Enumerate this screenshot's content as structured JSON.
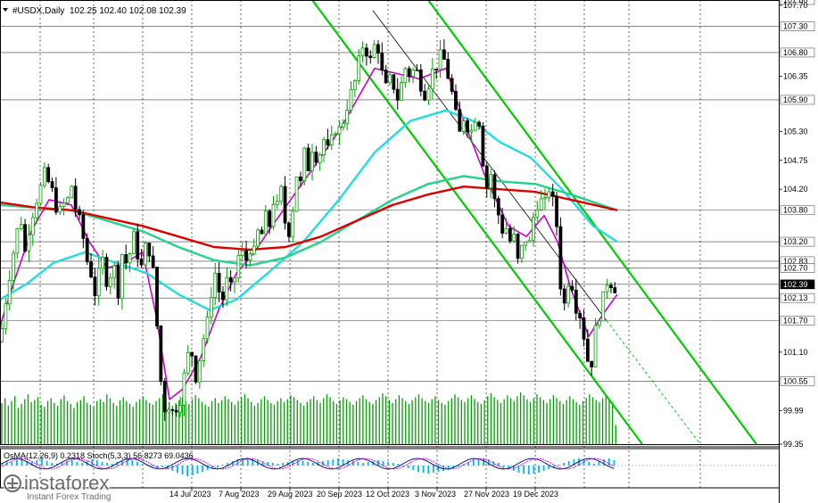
{
  "header": {
    "symbol": "#USDX,Daily",
    "ohlc": "102.25 102.40 102.08 102.39"
  },
  "osc_label": "OsMA(12,26,9) 0.2318  Stoch(5,3,3) 56.8273 69.0436",
  "watermark": {
    "brand": "instaforex",
    "tagline": "Instant Forex Trading"
  },
  "colors": {
    "bull": "#00a000",
    "bear": "#000000",
    "magenta": "#cc00cc",
    "cyan": "#22dddd",
    "green_ma": "#22d48a",
    "red_ma": "#dd0000",
    "channel": "#00cc00",
    "volume": "#00a000",
    "osma": "#00b7ee",
    "stoch_main": "#000080",
    "stoch_signal": "#cc00cc",
    "grid": "#000000",
    "level": "#000000"
  },
  "chart_data": {
    "type": "candlestick",
    "instrument": "#USDX",
    "timeframe": "Daily",
    "ylim": [
      99.35,
      107.8
    ],
    "price_ticks": [
      "107.80",
      "107.70",
      "107.30",
      "106.80",
      "106.35",
      "105.90",
      "105.30",
      "104.75",
      "104.20",
      "103.80",
      "103.20",
      "102.83",
      "102.70",
      "102.39",
      "102.13",
      "101.70",
      "101.10",
      "100.55",
      "99.99",
      "99.35"
    ],
    "horizontal_levels": [
      107.3,
      106.8,
      105.9,
      103.8,
      103.2,
      102.83,
      102.7,
      102.39,
      102.13,
      101.7,
      100.55
    ],
    "date_ticks": [
      "14 Jul 2023",
      "7 Aug 2023",
      "29 Aug 2023",
      "20 Sep 2023",
      "12 Oct 2023",
      "3 Nov 2023",
      "27 Nov 2023",
      "19 Dec 2023"
    ],
    "close_path": [
      [
        0,
        101.3
      ],
      [
        4,
        101.8
      ],
      [
        9,
        102.4
      ],
      [
        14,
        102.9
      ],
      [
        18,
        103.3
      ],
      [
        23,
        103.7
      ],
      [
        28,
        103.0
      ],
      [
        33,
        103.5
      ],
      [
        39,
        103.9
      ],
      [
        45,
        104.2
      ],
      [
        50,
        104.5
      ],
      [
        55,
        104.3
      ],
      [
        60,
        104.1
      ],
      [
        65,
        103.7
      ],
      [
        71,
        103.9
      ],
      [
        76,
        104.0
      ],
      [
        80,
        104.3
      ],
      [
        85,
        103.8
      ],
      [
        89,
        103.6
      ],
      [
        93,
        103.3
      ],
      [
        98,
        102.8
      ],
      [
        102,
        102.6
      ],
      [
        106,
        102.2
      ],
      [
        111,
        102.6
      ],
      [
        116,
        102.9
      ],
      [
        120,
        102.4
      ],
      [
        124,
        102.6
      ],
      [
        128,
        102.7
      ],
      [
        133,
        102.2
      ],
      [
        137,
        103.0
      ],
      [
        141,
        102.8
      ],
      [
        146,
        103.0
      ],
      [
        150,
        103.3
      ],
      [
        155,
        102.9
      ],
      [
        159,
        102.7
      ],
      [
        164,
        103.2
      ],
      [
        168,
        103.0
      ],
      [
        173,
        102.5
      ],
      [
        177,
        101.3
      ],
      [
        181,
        100.4
      ],
      [
        185,
        100.0
      ],
      [
        189,
        100.1
      ],
      [
        193,
        99.95
      ],
      [
        197,
        100.05
      ],
      [
        201,
        100.1
      ],
      [
        205,
        100.5
      ],
      [
        210,
        101.0
      ],
      [
        214,
        101.2
      ],
      [
        219,
        100.6
      ],
      [
        223,
        100.9
      ],
      [
        227,
        101.3
      ],
      [
        232,
        101.6
      ],
      [
        236,
        102.1
      ],
      [
        240,
        102.7
      ],
      [
        245,
        102.3
      ],
      [
        249,
        102.0
      ],
      [
        253,
        102.5
      ],
      [
        258,
        102.3
      ],
      [
        262,
        102.4
      ],
      [
        266,
        102.9
      ],
      [
        271,
        103.0
      ],
      [
        275,
        102.8
      ],
      [
        280,
        103.1
      ],
      [
        284,
        102.9
      ],
      [
        288,
        103.4
      ],
      [
        293,
        103.3
      ],
      [
        297,
        103.7
      ],
      [
        302,
        103.5
      ],
      [
        306,
        104.0
      ],
      [
        310,
        103.8
      ],
      [
        315,
        104.2
      ],
      [
        319,
        103.6
      ],
      [
        324,
        103.4
      ],
      [
        328,
        103.8
      ],
      [
        332,
        104.5
      ],
      [
        337,
        104.3
      ],
      [
        341,
        104.9
      ],
      [
        346,
        104.6
      ],
      [
        350,
        105.0
      ],
      [
        355,
        104.8
      ],
      [
        359,
        104.9
      ],
      [
        364,
        105.2
      ],
      [
        368,
        104.9
      ],
      [
        373,
        105.2
      ],
      [
        377,
        105.4
      ],
      [
        382,
        105.3
      ],
      [
        386,
        105.6
      ],
      [
        391,
        105.9
      ],
      [
        395,
        106.1
      ],
      [
        399,
        106.3
      ],
      [
        404,
        106.8
      ],
      [
        408,
        107.0
      ],
      [
        413,
        106.7
      ],
      [
        417,
        106.6
      ],
      [
        421,
        107.1
      ],
      [
        425,
        106.8
      ],
      [
        430,
        106.2
      ],
      [
        434,
        106.1
      ],
      [
        439,
        106.4
      ],
      [
        443,
        106.0
      ],
      [
        447,
        105.9
      ],
      [
        451,
        106.3
      ],
      [
        456,
        106.6
      ],
      [
        460,
        106.3
      ],
      [
        464,
        106.5
      ],
      [
        469,
        106.4
      ],
      [
        473,
        106.1
      ],
      [
        477,
        106.0
      ],
      [
        482,
        106.3
      ],
      [
        486,
        106.5
      ],
      [
        491,
        106.6
      ],
      [
        495,
        106.8
      ],
      [
        499,
        106.6
      ],
      [
        503,
        106.3
      ],
      [
        507,
        106.0
      ],
      [
        511,
        105.6
      ],
      [
        516,
        105.2
      ],
      [
        520,
        105.6
      ],
      [
        524,
        105.4
      ],
      [
        529,
        105.3
      ],
      [
        533,
        105.6
      ],
      [
        537,
        105.5
      ],
      [
        541,
        104.8
      ],
      [
        545,
        104.2
      ],
      [
        550,
        104.5
      ],
      [
        554,
        104.0
      ],
      [
        558,
        103.8
      ],
      [
        562,
        103.4
      ],
      [
        567,
        103.5
      ],
      [
        571,
        103.2
      ],
      [
        576,
        103.3
      ],
      [
        580,
        102.8
      ],
      [
        584,
        103.0
      ],
      [
        588,
        103.3
      ],
      [
        593,
        103.1
      ],
      [
        597,
        103.6
      ],
      [
        601,
        103.9
      ],
      [
        606,
        104.0
      ],
      [
        610,
        103.8
      ],
      [
        614,
        104.3
      ],
      [
        619,
        104.0
      ],
      [
        623,
        103.8
      ],
      [
        627,
        102.7
      ],
      [
        631,
        101.8
      ],
      [
        636,
        102.4
      ],
      [
        640,
        102.6
      ],
      [
        644,
        102.0
      ],
      [
        649,
        101.9
      ],
      [
        653,
        101.6
      ],
      [
        657,
        101.1
      ],
      [
        662,
        100.7
      ],
      [
        666,
        101.4
      ],
      [
        670,
        101.7
      ],
      [
        675,
        102.0
      ],
      [
        679,
        102.4
      ],
      [
        683,
        102.5
      ],
      [
        688,
        102.3
      ],
      [
        692,
        102.39
      ]
    ],
    "series": [
      {
        "name": "",
        "color": "magenta",
        "values": [
          [
            0,
            101.6
          ],
          [
            15,
            102.4
          ],
          [
            35,
            103.4
          ],
          [
            55,
            104.0
          ],
          [
            80,
            103.9
          ],
          [
            100,
            103.2
          ],
          [
            120,
            102.7
          ],
          [
            140,
            102.8
          ],
          [
            160,
            103.0
          ],
          [
            175,
            101.8
          ],
          [
            190,
            100.2
          ],
          [
            205,
            100.4
          ],
          [
            225,
            101.0
          ],
          [
            245,
            101.9
          ],
          [
            265,
            102.6
          ],
          [
            285,
            103.0
          ],
          [
            305,
            103.5
          ],
          [
            330,
            104.1
          ],
          [
            355,
            104.7
          ],
          [
            380,
            105.3
          ],
          [
            400,
            105.9
          ],
          [
            420,
            106.5
          ],
          [
            445,
            106.4
          ],
          [
            470,
            106.3
          ],
          [
            500,
            106.5
          ],
          [
            520,
            105.5
          ],
          [
            545,
            104.4
          ],
          [
            570,
            103.5
          ],
          [
            590,
            103.3
          ],
          [
            610,
            103.7
          ],
          [
            625,
            103.2
          ],
          [
            640,
            102.3
          ],
          [
            660,
            101.4
          ],
          [
            675,
            101.8
          ],
          [
            692,
            102.2
          ]
        ]
      },
      {
        "name": "",
        "color": "cyan",
        "values": [
          [
            0,
            102.1
          ],
          [
            30,
            102.4
          ],
          [
            60,
            102.8
          ],
          [
            95,
            103.0
          ],
          [
            130,
            102.8
          ],
          [
            165,
            102.6
          ],
          [
            200,
            102.2
          ],
          [
            235,
            101.9
          ],
          [
            265,
            102.1
          ],
          [
            300,
            102.6
          ],
          [
            340,
            103.2
          ],
          [
            380,
            104.0
          ],
          [
            420,
            104.9
          ],
          [
            460,
            105.5
          ],
          [
            500,
            105.7
          ],
          [
            530,
            105.5
          ],
          [
            560,
            105.1
          ],
          [
            595,
            104.8
          ],
          [
            630,
            104.2
          ],
          [
            665,
            103.5
          ],
          [
            692,
            103.2
          ]
        ]
      },
      {
        "name": "",
        "color": "green_ma",
        "values": [
          [
            0,
            103.9
          ],
          [
            40,
            103.85
          ],
          [
            80,
            103.8
          ],
          [
            120,
            103.6
          ],
          [
            160,
            103.4
          ],
          [
            200,
            103.1
          ],
          [
            240,
            102.85
          ],
          [
            280,
            102.75
          ],
          [
            320,
            102.9
          ],
          [
            360,
            103.2
          ],
          [
            400,
            103.6
          ],
          [
            440,
            104.0
          ],
          [
            480,
            104.3
          ],
          [
            520,
            104.45
          ],
          [
            560,
            104.35
          ],
          [
            600,
            104.3
          ],
          [
            640,
            104.1
          ],
          [
            692,
            103.8
          ]
        ]
      },
      {
        "name": "",
        "color": "red_ma",
        "values": [
          [
            0,
            103.95
          ],
          [
            40,
            103.85
          ],
          [
            80,
            103.8
          ],
          [
            120,
            103.65
          ],
          [
            160,
            103.5
          ],
          [
            200,
            103.3
          ],
          [
            240,
            103.1
          ],
          [
            280,
            103.05
          ],
          [
            320,
            103.1
          ],
          [
            360,
            103.3
          ],
          [
            400,
            103.6
          ],
          [
            440,
            103.9
          ],
          [
            480,
            104.1
          ],
          [
            520,
            104.25
          ],
          [
            560,
            104.2
          ],
          [
            600,
            104.15
          ],
          [
            640,
            104.0
          ],
          [
            692,
            103.8
          ]
        ]
      }
    ],
    "channel_lines": [
      {
        "from": [
          350,
          107.8
        ],
        "to": [
          720,
          99.35
        ]
      },
      {
        "from": [
          480,
          107.8
        ],
        "to": [
          848,
          99.35
        ]
      }
    ],
    "trend_line": {
      "from": [
        418,
        107.6
      ],
      "to": [
        680,
        101.7
      ],
      "extension_to": [
        785,
        99.35
      ]
    },
    "volume": [
      43,
      48,
      40,
      45,
      50,
      38,
      42,
      47,
      52,
      44,
      46,
      49,
      41,
      39,
      45,
      48,
      43,
      40,
      47,
      51,
      45,
      42,
      38,
      44,
      46,
      50,
      43,
      41,
      39,
      45,
      47,
      44,
      52,
      48,
      43,
      40,
      46,
      49,
      45,
      42,
      39,
      44,
      47,
      50,
      46,
      43,
      41,
      45,
      48,
      52,
      47,
      44,
      40,
      43,
      46,
      49,
      45,
      42,
      47,
      51,
      48,
      44,
      41,
      39,
      45,
      48,
      43,
      46,
      50,
      47,
      44,
      41,
      45,
      49,
      52,
      48,
      44,
      40,
      43,
      47,
      50,
      46,
      43,
      41,
      45,
      48,
      44,
      47,
      51,
      49,
      46,
      43,
      40,
      44,
      47,
      50,
      46,
      43,
      48,
      52,
      49,
      45,
      42,
      46,
      49,
      47,
      44,
      41,
      45,
      48,
      51,
      47,
      44,
      42,
      46,
      49,
      53,
      50,
      46,
      43,
      47,
      51,
      48,
      45,
      42,
      46,
      49,
      52,
      48,
      45,
      43,
      47,
      50,
      46,
      43,
      41,
      45,
      48,
      52,
      49,
      46,
      44,
      48,
      51,
      47,
      44,
      42,
      46,
      50,
      53,
      49,
      46,
      43,
      47,
      51,
      48,
      45,
      50,
      54,
      51,
      47,
      44,
      48,
      52,
      49,
      46,
      43,
      47,
      51,
      48,
      45,
      42,
      46,
      50,
      47,
      44,
      41,
      45,
      48,
      52,
      49,
      46,
      44,
      48,
      51,
      47,
      44,
      20
    ],
    "osma": [
      3,
      5,
      4,
      6,
      7,
      5,
      4,
      6,
      8,
      5,
      3,
      2,
      4,
      5,
      6,
      4,
      3,
      5,
      7,
      6,
      4,
      3,
      2,
      4,
      5,
      7,
      6,
      4,
      2,
      1,
      -1,
      -3,
      -2,
      -4,
      -6,
      -8,
      -10,
      -12,
      -11,
      -9,
      -7,
      -5,
      -3,
      -2,
      1,
      3,
      5,
      7,
      8,
      9,
      8,
      6,
      5,
      4,
      3,
      2,
      3,
      4,
      5,
      6,
      5,
      4,
      3,
      4,
      5,
      6,
      7,
      8,
      7,
      6,
      5,
      4,
      3,
      4,
      5,
      6,
      5,
      4,
      3,
      2,
      -1,
      -3,
      -5,
      -7,
      -8,
      -9,
      -8,
      -7,
      -6,
      -5,
      -3,
      -1,
      2,
      4,
      6,
      7,
      8,
      7,
      5,
      3,
      -2,
      -4,
      -6,
      -8,
      -9,
      -10,
      -9,
      -8,
      -6,
      -4,
      -2,
      1,
      3,
      5,
      7,
      8,
      6,
      4,
      2,
      5,
      7,
      8,
      6
    ]
  }
}
